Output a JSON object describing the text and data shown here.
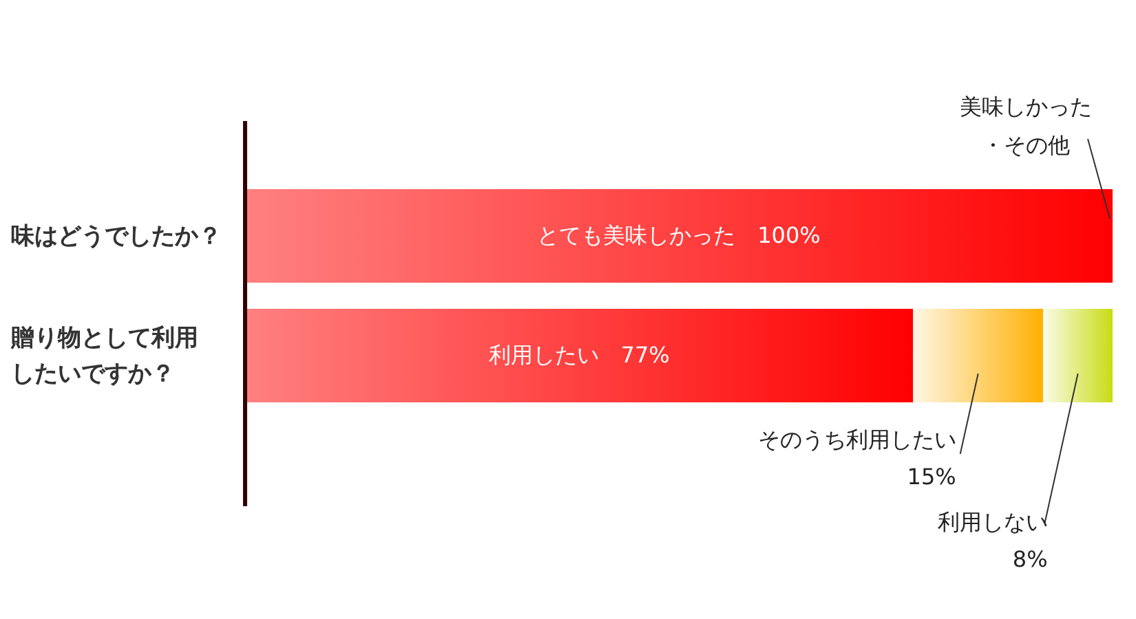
{
  "chart_data": {
    "type": "bar",
    "orientation": "horizontal",
    "stacked": true,
    "tick_labels": "y",
    "xlim": [
      0,
      100
    ],
    "categories": [
      "味はどうでしたか？",
      "贈り物として利用したいですか？"
    ],
    "series": [
      {
        "color": "#ff0000",
        "values": [
          100,
          77
        ],
        "value_labels": [
          "とても美味しかった　100%",
          "利用したい　77%"
        ]
      },
      {
        "color": "#ffb000",
        "values": [
          null,
          15
        ],
        "value_labels": [
          null,
          "そのうち利用したい 15%"
        ]
      },
      {
        "color": "#c8dc14",
        "values": [
          null,
          8
        ],
        "value_labels": [
          null,
          "利用しない 8%"
        ]
      }
    ],
    "annotations": [
      "美味しかった・その他"
    ]
  }
}
